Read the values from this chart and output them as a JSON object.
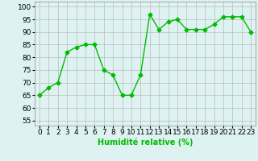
{
  "x": [
    0,
    1,
    2,
    3,
    4,
    5,
    6,
    7,
    8,
    9,
    10,
    11,
    12,
    13,
    14,
    15,
    16,
    17,
    18,
    19,
    20,
    21,
    22,
    23
  ],
  "y": [
    65,
    68,
    70,
    82,
    84,
    85,
    85,
    75,
    73,
    65,
    65,
    73,
    97,
    91,
    94,
    95,
    91,
    91,
    91,
    93,
    96,
    96,
    96,
    90
  ],
  "line_color": "#00bb00",
  "marker": "D",
  "marker_size": 2.5,
  "bg_color": "#dff2f2",
  "grid_color": "#bbbbbb",
  "xlabel": "Humidité relative (%)",
  "xlabel_color": "#00bb00",
  "xlabel_fontsize": 7,
  "ylabel_ticks": [
    55,
    60,
    65,
    70,
    75,
    80,
    85,
    90,
    95,
    100
  ],
  "xlim": [
    -0.5,
    23.5
  ],
  "ylim": [
    53,
    102
  ],
  "tick_fontsize": 6.5
}
